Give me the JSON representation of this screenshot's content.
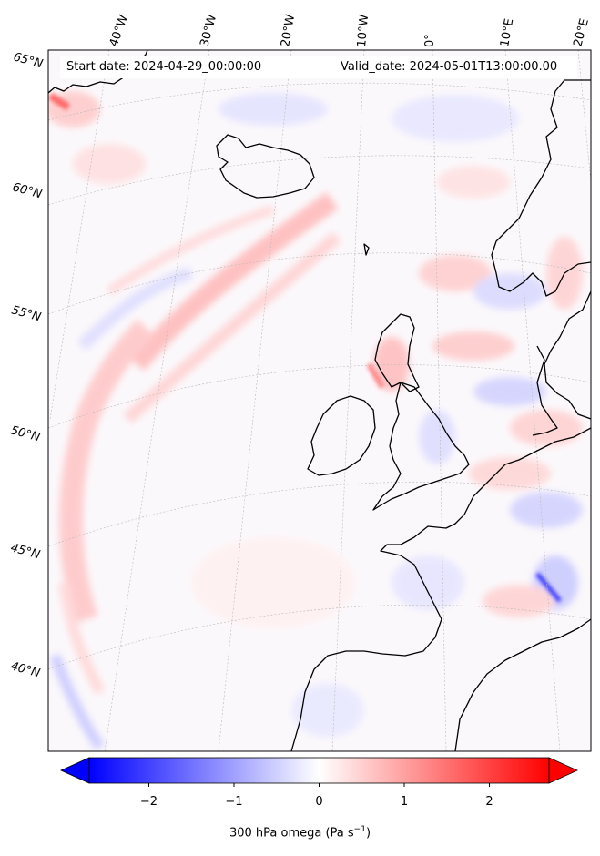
{
  "header": {
    "start_date": "Start date: 2024-04-29_00:00:00",
    "valid_date": "Valid_date: 2024-05-01T13:00:00.00"
  },
  "map": {
    "lon_labels": [
      "40°W",
      "30°W",
      "20°W",
      "10°W",
      "0°",
      "10°E",
      "20°E"
    ],
    "lat_labels": [
      "65°N",
      "60°N",
      "55°N",
      "50°N",
      "45°N",
      "40°N"
    ],
    "field": "300 hPa omega",
    "cmap": [
      "#0000ff",
      "#ffffff",
      "#ff0000"
    ]
  },
  "colorbar": {
    "label_prefix": "300 hPa omega (Pa s",
    "label_exp": "−1",
    "label_suffix": ")",
    "ticks": [
      "−2",
      "−1",
      "0",
      "1",
      "2"
    ],
    "range": [
      -2.7,
      2.7
    ],
    "tick_values": [
      -2,
      -1,
      0,
      1,
      2
    ]
  }
}
